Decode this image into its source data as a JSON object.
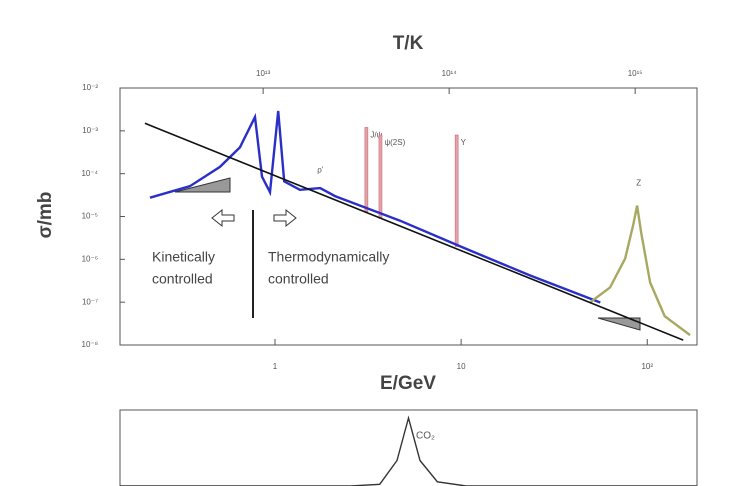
{
  "chart_data": [
    {
      "type": "line",
      "title": "T/K",
      "x_label": "E/GeV",
      "y_label": "σ/mb",
      "log_x": true,
      "log_y": true,
      "xlim": [
        0.147,
        185
      ],
      "xticks": [
        1,
        10,
        {
          "value": 100,
          "label": "10²"
        }
      ],
      "x2lim": [
        1700000000000.0,
        2150000000000000.0
      ],
      "x2ticks": [
        {
          "value": 10000000000000.0,
          "label": "10¹³"
        },
        {
          "value": 100000000000000.0,
          "label": "10¹⁴"
        },
        {
          "value": 1000000000000000.0,
          "label": "10¹⁵"
        }
      ],
      "ylim": [
        1e-08,
        0.01
      ],
      "yticks": [
        {
          "value": 0.01,
          "label": "10⁻²"
        },
        {
          "value": 0.001,
          "label": "10⁻³"
        },
        {
          "value": 0.0001,
          "label": "10⁻⁴"
        },
        {
          "value": 1e-05,
          "label": "10⁻⁵"
        },
        {
          "value": 1e-06,
          "label": "10⁻⁶"
        },
        {
          "value": 1e-07,
          "label": "10⁻⁷"
        },
        {
          "value": 1e-08,
          "label": "10⁻⁸"
        }
      ],
      "series": [
        {
          "color": "#2a2fc8",
          "x": [
            0.213,
            0.349,
            0.506,
            0.648,
            0.781,
            0.851,
            0.94,
            1.04,
            1.12,
            1.36,
            1.75,
            2.1,
            4.7,
            9.9,
            23.5,
            55.9
          ],
          "values": [
            2.75e-05,
            5.1e-05,
            0.000144,
            0.00041,
            0.0021,
            8.5e-05,
            3.7e-05,
            0.0029,
            6.6e-05,
            4.2e-05,
            4.6e-05,
            3e-05,
            8e-06,
            2e-06,
            4.2e-07,
            9.8e-08
          ]
        },
        {
          "color": "#a8a860",
          "x": [
            49.4,
            63.1,
            76.1,
            84.1,
            88.2,
            92.6,
            103.5,
            124.1,
            169.8
          ],
          "values": [
            1e-07,
            2.2e-07,
            1.05e-06,
            6.5e-06,
            1.8e-05,
            4.3e-06,
            2.9e-07,
            4.7e-08,
            1.7e-08
          ]
        },
        {
          "color": "#111111",
          "x": [
            0.2,
            156
          ],
          "values": [
            0.0015,
            1.3e-08
          ]
        }
      ],
      "resonances": [
        {
          "label": "J/ψ",
          "x": 3.097,
          "top": 0.0012,
          "bottom": 1.3e-05
        },
        {
          "label": "ψ(2S)",
          "x": 3.686,
          "top": 0.0008,
          "bottom": 9e-06
        },
        {
          "label": "Υ",
          "x": 9.46,
          "top": 0.0008,
          "bottom": 2e-06
        }
      ],
      "annotations": [
        {
          "text": "Z",
          "x": 90,
          "y": 6e-05
        },
        {
          "text": "ρ'",
          "x": 1.75,
          "y": 0.00012
        }
      ],
      "regions": [
        {
          "lines": [
            "Kinetically",
            "controlled"
          ]
        },
        {
          "lines": [
            "Thermodynamically",
            "controlled"
          ]
        }
      ]
    },
    {
      "type": "line",
      "annotation": "CO₂",
      "x": [
        0,
        40,
        45,
        48,
        50,
        52,
        55,
        60,
        100
      ],
      "values": [
        0,
        0,
        2,
        30,
        80,
        30,
        5,
        0,
        0
      ]
    }
  ]
}
